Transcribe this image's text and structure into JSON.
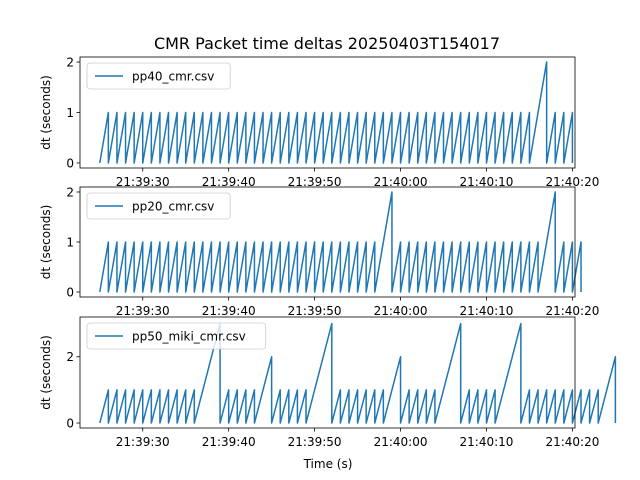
{
  "figure": {
    "title": "CMR Packet time deltas 20250403T154017",
    "xlabel": "Time (s)",
    "line_color": "#1f77b4"
  },
  "chart_data": [
    {
      "type": "line",
      "series": [
        {
          "name": "pp40_cmr.csv"
        }
      ],
      "xlabel": "",
      "ylabel": "dt (seconds)",
      "x_unit": "time of day (HH:MM:SS)",
      "xlim": [
        "21:39:22.7",
        "21:40:20.3"
      ],
      "ylim": [
        -0.1,
        2.1
      ],
      "yticks": [
        0,
        1,
        2
      ],
      "xticks": [
        "21:39:30",
        "21:39:40",
        "21:39:50",
        "21:40:00",
        "21:40:10",
        "21:40:20"
      ],
      "xtick_labels": [
        "21:39:30",
        "21:39:40",
        "21:39:50",
        "21:40:00",
        "21:40:10",
        "21:40:20"
      ],
      "legend": "top-left",
      "start": "21:39:25",
      "cycles": [
        1,
        1,
        1,
        1,
        1,
        1,
        1,
        1,
        1,
        1,
        1,
        1,
        1,
        1,
        1,
        1,
        1,
        1,
        1,
        1,
        1,
        1,
        1,
        1,
        1,
        1,
        1,
        1,
        1,
        1,
        1,
        1,
        1,
        1,
        1,
        1,
        1,
        1,
        1,
        1,
        1,
        1,
        1,
        1,
        1,
        1,
        1,
        1,
        1,
        1,
        2,
        1,
        1,
        1
      ]
    },
    {
      "type": "line",
      "series": [
        {
          "name": "pp20_cmr.csv"
        }
      ],
      "xlabel": "",
      "ylabel": "dt (seconds)",
      "x_unit": "time of day (HH:MM:SS)",
      "xlim": [
        "21:39:22.7",
        "21:40:20.3"
      ],
      "ylim": [
        -0.1,
        2.1
      ],
      "yticks": [
        0,
        1,
        2
      ],
      "xticks": [
        "21:39:30",
        "21:39:40",
        "21:39:50",
        "21:40:00",
        "21:40:10",
        "21:40:20"
      ],
      "xtick_labels": [
        "21:39:30",
        "21:39:40",
        "21:39:50",
        "21:40:00",
        "21:40:10",
        "21:40:20"
      ],
      "legend": "top-left",
      "start": "21:39:25",
      "cycles": [
        1,
        1,
        1,
        1,
        1,
        1,
        1,
        1,
        1,
        1,
        1,
        1,
        1,
        1,
        1,
        1,
        1,
        1,
        1,
        1,
        1,
        1,
        1,
        1,
        1,
        1,
        1,
        1,
        1,
        1,
        1,
        1,
        2,
        1,
        1,
        1,
        1,
        1,
        1,
        1,
        1,
        1,
        1,
        1,
        1,
        1,
        1,
        1,
        1,
        1,
        2,
        1,
        1,
        1
      ]
    },
    {
      "type": "line",
      "series": [
        {
          "name": "pp50_miki_cmr.csv"
        }
      ],
      "xlabel": "Time (s)",
      "ylabel": "dt (seconds)",
      "x_unit": "time of day (HH:MM:SS)",
      "xlim": [
        "21:39:22.7",
        "21:40:20.3"
      ],
      "ylim": [
        -0.15,
        3.2
      ],
      "yticks": [
        0,
        2
      ],
      "xticks": [
        "21:39:30",
        "21:39:40",
        "21:39:50",
        "21:40:00",
        "21:40:10",
        "21:40:20"
      ],
      "xtick_labels": [
        "21:39:30",
        "21:39:40",
        "21:39:50",
        "21:40:00",
        "21:40:10",
        "21:40:20"
      ],
      "legend": "top-left",
      "start": "21:39:25",
      "cycles": [
        1,
        1,
        1,
        1,
        1,
        1,
        1,
        1,
        1,
        1,
        1,
        3,
        1,
        1,
        1,
        1,
        2,
        1,
        1,
        1,
        1,
        3,
        1,
        1,
        1,
        1,
        1,
        1,
        2,
        1,
        1,
        1,
        1,
        3,
        1,
        1,
        1,
        1,
        3,
        1,
        1,
        1,
        1,
        1,
        1,
        1,
        1,
        1,
        2
      ]
    }
  ]
}
